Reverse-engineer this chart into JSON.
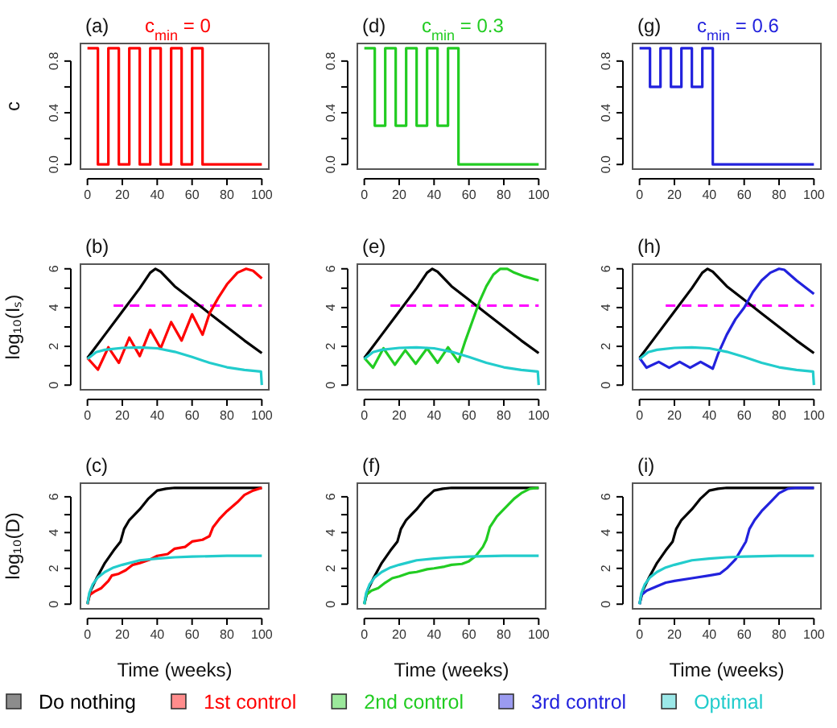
{
  "chart_data": [
    {
      "type": "step",
      "title": "(a)",
      "subtitle": "c$_{min}$ = 0",
      "ylabel": "c",
      "xlim": [
        -4,
        104
      ],
      "xticks": [
        0,
        20,
        40,
        60,
        80,
        100
      ],
      "ylim": [
        -0.036,
        0.936
      ],
      "yticks": [
        {
          "value": 0,
          "label": "0.0"
        },
        {
          "value": 0.2,
          "label": null
        },
        {
          "value": 0.4,
          "label": "0.4"
        },
        {
          "value": 0.6,
          "label": null
        },
        {
          "value": 0.8,
          "label": "0.8"
        }
      ],
      "grid": false,
      "legend": false,
      "series": [
        {
          "color": "#ff0000",
          "x": [
            0,
            6,
            12,
            18,
            24,
            30,
            36,
            42,
            48,
            54,
            60,
            66,
            100
          ],
          "values": [
            0.9,
            0,
            0.9,
            0,
            0.9,
            0,
            0.9,
            0,
            0.9,
            0,
            0.9,
            0,
            0
          ]
        }
      ]
    },
    {
      "type": "step",
      "title": "(d)",
      "subtitle": "c$_{min}$ = 0.3",
      "xlim": [
        -4,
        104
      ],
      "xticks": [
        0,
        20,
        40,
        60,
        80,
        100
      ],
      "ylim": [
        -0.036,
        0.936
      ],
      "yticks": [
        {
          "value": 0,
          "label": "0.0"
        },
        {
          "value": 0.2,
          "label": null
        },
        {
          "value": 0.4,
          "label": "0.4"
        },
        {
          "value": 0.6,
          "label": null
        },
        {
          "value": 0.8,
          "label": "0.8"
        }
      ],
      "grid": false,
      "legend": false,
      "series": [
        {
          "color": "#22cc22",
          "x": [
            0,
            6,
            12,
            18,
            24,
            30,
            36,
            42,
            48,
            54,
            100
          ],
          "values": [
            0.9,
            0.3,
            0.9,
            0.3,
            0.9,
            0.3,
            0.9,
            0.3,
            0.9,
            0,
            0
          ]
        }
      ]
    },
    {
      "type": "step",
      "title": "(g)",
      "subtitle": "c$_{min}$ = 0.6",
      "xlim": [
        -4,
        104
      ],
      "xticks": [
        0,
        20,
        40,
        60,
        80,
        100
      ],
      "ylim": [
        -0.036,
        0.936
      ],
      "yticks": [
        {
          "value": 0,
          "label": "0.0"
        },
        {
          "value": 0.2,
          "label": null
        },
        {
          "value": 0.4,
          "label": "0.4"
        },
        {
          "value": 0.6,
          "label": null
        },
        {
          "value": 0.8,
          "label": "0.8"
        }
      ],
      "grid": false,
      "legend": false,
      "series": [
        {
          "color": "#2222dd",
          "x": [
            0,
            6,
            12,
            18,
            24,
            30,
            36,
            42,
            100
          ],
          "values": [
            0.9,
            0.6,
            0.9,
            0.6,
            0.9,
            0.6,
            0.9,
            0,
            0
          ]
        }
      ]
    },
    {
      "type": "line",
      "title": "(b)",
      "ylabel": "log₁₀(Iₛ)",
      "xlim": [
        -4,
        104
      ],
      "xticks": [
        0,
        20,
        40,
        60,
        80,
        100
      ],
      "ylim": [
        -0.24,
        6.24
      ],
      "yticks": [
        0,
        {
          "value": 1,
          "label": null
        },
        2,
        {
          "value": 3,
          "label": null
        },
        4,
        {
          "value": 5,
          "label": null
        },
        6
      ],
      "grid": false,
      "legend": "bottom",
      "ref_lines": [
        {
          "axis": "y",
          "value": 4.1,
          "color": "#ff00ff",
          "line_style": "dashed"
        }
      ],
      "series": [
        {
          "name": "Do nothing",
          "color": "#000000",
          "x": [
            0,
            10,
            20,
            30,
            36,
            39,
            42,
            50,
            60,
            70,
            80,
            90,
            100
          ],
          "values": [
            1.4,
            2.6,
            3.8,
            5,
            5.8,
            6,
            5.85,
            5.1,
            4.4,
            3.7,
            3.0,
            2.3,
            1.65
          ]
        },
        {
          "name": "1st control",
          "color": "#ff0000",
          "x": [
            0,
            6,
            12,
            18,
            24,
            30,
            36,
            42,
            48,
            54,
            60,
            66,
            70,
            75,
            80,
            86,
            91,
            95,
            100
          ],
          "values": [
            1.4,
            0.8,
            1.95,
            1.15,
            2.45,
            1.5,
            2.85,
            1.9,
            3.25,
            2.3,
            3.65,
            2.6,
            3.7,
            4.5,
            5.2,
            5.8,
            6,
            5.9,
            5.5
          ]
        },
        {
          "name": "Optimal",
          "color": "#22cccc",
          "x": [
            0,
            5,
            10,
            20,
            30,
            40,
            50,
            60,
            70,
            80,
            90,
            99.5,
            100
          ],
          "values": [
            1.35,
            1.7,
            1.82,
            1.92,
            1.95,
            1.9,
            1.72,
            1.45,
            1.15,
            0.92,
            0.78,
            0.7,
            0
          ]
        }
      ]
    },
    {
      "type": "line",
      "title": "(e)",
      "xlim": [
        -4,
        104
      ],
      "xticks": [
        0,
        20,
        40,
        60,
        80,
        100
      ],
      "ylim": [
        -0.24,
        6.24
      ],
      "yticks": [
        0,
        {
          "value": 1,
          "label": null
        },
        2,
        {
          "value": 3,
          "label": null
        },
        4,
        {
          "value": 5,
          "label": null
        },
        6
      ],
      "grid": false,
      "legend": "bottom",
      "ref_lines": [
        {
          "axis": "y",
          "value": 4.1,
          "color": "#ff00ff",
          "line_style": "dashed"
        }
      ],
      "series": [
        {
          "color": "#000000",
          "x": [
            0,
            10,
            20,
            30,
            36,
            39,
            42,
            50,
            60,
            70,
            80,
            90,
            100
          ],
          "values": [
            1.4,
            2.6,
            3.8,
            5,
            5.8,
            6,
            5.85,
            5.1,
            4.4,
            3.7,
            3.0,
            2.3,
            1.65
          ]
        },
        {
          "name": "2nd control",
          "color": "#22cc22",
          "x": [
            0,
            5,
            11,
            17.5,
            23.5,
            29.5,
            36,
            42,
            48,
            54,
            58,
            62,
            66,
            70,
            74,
            78,
            82,
            86,
            92,
            100
          ],
          "values": [
            1.4,
            0.9,
            1.9,
            1.05,
            1.8,
            1.1,
            1.9,
            1.15,
            1.95,
            1.2,
            2.3,
            3.3,
            4.3,
            5.1,
            5.7,
            6,
            6,
            5.8,
            5.6,
            5.4
          ]
        },
        {
          "color": "#22cccc",
          "x": [
            0,
            5,
            10,
            20,
            30,
            40,
            50,
            60,
            70,
            80,
            90,
            99.5,
            100
          ],
          "values": [
            1.35,
            1.7,
            1.82,
            1.92,
            1.95,
            1.9,
            1.72,
            1.45,
            1.15,
            0.92,
            0.78,
            0.7,
            0
          ]
        }
      ]
    },
    {
      "type": "line",
      "title": "(h)",
      "xlim": [
        -4,
        104
      ],
      "xticks": [
        0,
        20,
        40,
        60,
        80,
        100
      ],
      "ylim": [
        -0.24,
        6.24
      ],
      "yticks": [
        0,
        {
          "value": 1,
          "label": null
        },
        2,
        {
          "value": 3,
          "label": null
        },
        4,
        {
          "value": 5,
          "label": null
        },
        6
      ],
      "grid": false,
      "legend": "bottom",
      "ref_lines": [
        {
          "axis": "y",
          "value": 4.1,
          "color": "#ff00ff",
          "line_style": "dashed"
        }
      ],
      "series": [
        {
          "color": "#000000",
          "x": [
            0,
            10,
            20,
            30,
            36,
            39,
            42,
            50,
            60,
            70,
            80,
            90,
            100
          ],
          "values": [
            1.4,
            2.6,
            3.8,
            5,
            5.8,
            6,
            5.85,
            5.1,
            4.4,
            3.7,
            3.0,
            2.3,
            1.65
          ]
        },
        {
          "name": "3rd control",
          "color": "#2222dd",
          "x": [
            0,
            4,
            11,
            17,
            23,
            29,
            35,
            42,
            45,
            50,
            55,
            60,
            65,
            70,
            75,
            80,
            83,
            90,
            100
          ],
          "values": [
            1.4,
            0.9,
            1.2,
            0.9,
            1.2,
            0.9,
            1.2,
            0.85,
            1.6,
            2.6,
            3.4,
            4.0,
            4.8,
            5.4,
            5.8,
            6,
            5.95,
            5.4,
            4.7
          ]
        },
        {
          "color": "#22cccc",
          "x": [
            0,
            5,
            10,
            20,
            30,
            40,
            50,
            60,
            70,
            80,
            90,
            99.5,
            100
          ],
          "values": [
            1.35,
            1.7,
            1.82,
            1.92,
            1.95,
            1.9,
            1.72,
            1.45,
            1.15,
            0.92,
            0.78,
            0.7,
            0
          ]
        }
      ]
    },
    {
      "type": "line",
      "title": "(c)",
      "ylabel": "log₁₀(D)",
      "xlabel": "Time (weeks)",
      "xlim": [
        -4,
        104
      ],
      "xticks": [
        0,
        20,
        40,
        60,
        80,
        100
      ],
      "ylim": [
        -0.26,
        6.76
      ],
      "yticks": [
        0,
        {
          "value": 1,
          "label": null
        },
        2,
        {
          "value": 3,
          "label": null
        },
        4,
        {
          "value": 5,
          "label": null
        },
        6
      ],
      "grid": false,
      "series": [
        {
          "color": "#000000",
          "x": [
            0,
            2,
            5,
            10,
            15,
            19,
            21,
            24,
            30,
            35,
            40,
            45,
            50,
            100
          ],
          "values": [
            0,
            0.8,
            1.4,
            2.3,
            3.0,
            3.5,
            4.2,
            4.7,
            5.3,
            5.9,
            6.35,
            6.45,
            6.5,
            6.5
          ]
        },
        {
          "color": "#ff0000",
          "x": [
            0,
            1,
            4,
            8,
            12,
            14,
            18,
            22,
            26,
            30,
            36,
            40,
            46,
            50,
            56,
            60,
            66,
            70,
            72,
            76,
            80,
            86,
            90,
            95,
            100
          ],
          "values": [
            0,
            0.5,
            0.7,
            0.9,
            1.3,
            1.6,
            1.7,
            1.9,
            2.2,
            2.3,
            2.5,
            2.7,
            2.8,
            3.1,
            3.2,
            3.5,
            3.6,
            3.8,
            4.3,
            4.8,
            5.2,
            5.7,
            6.1,
            6.35,
            6.5
          ]
        },
        {
          "color": "#22cccc",
          "x": [
            0,
            1,
            3,
            6,
            10,
            15,
            20,
            30,
            40,
            50,
            60,
            80,
            100
          ],
          "values": [
            0,
            0.6,
            1.1,
            1.5,
            1.8,
            2.05,
            2.2,
            2.45,
            2.55,
            2.62,
            2.66,
            2.7,
            2.7
          ]
        }
      ]
    },
    {
      "type": "line",
      "title": "(f)",
      "xlabel": "Time (weeks)",
      "xlim": [
        -4,
        104
      ],
      "xticks": [
        0,
        20,
        40,
        60,
        80,
        100
      ],
      "ylim": [
        -0.26,
        6.76
      ],
      "yticks": [
        0,
        {
          "value": 1,
          "label": null
        },
        2,
        {
          "value": 3,
          "label": null
        },
        4,
        {
          "value": 5,
          "label": null
        },
        6
      ],
      "grid": false,
      "series": [
        {
          "color": "#000000",
          "x": [
            0,
            2,
            5,
            10,
            15,
            19,
            21,
            24,
            30,
            35,
            40,
            45,
            50,
            100
          ],
          "values": [
            0,
            0.8,
            1.4,
            2.3,
            3.0,
            3.5,
            4.2,
            4.7,
            5.3,
            5.9,
            6.35,
            6.45,
            6.5,
            6.5
          ]
        },
        {
          "color": "#22cc22",
          "x": [
            0,
            1,
            4,
            8,
            12,
            16,
            20,
            26,
            30,
            36,
            40,
            46,
            50,
            56,
            60,
            64,
            68,
            70,
            72,
            76,
            80,
            86,
            90,
            95,
            100
          ],
          "values": [
            0,
            0.5,
            0.75,
            0.9,
            1.2,
            1.45,
            1.55,
            1.75,
            1.8,
            1.95,
            2.0,
            2.1,
            2.2,
            2.25,
            2.4,
            2.7,
            3.2,
            3.6,
            4.3,
            4.9,
            5.3,
            5.9,
            6.2,
            6.45,
            6.5
          ]
        },
        {
          "color": "#22cccc",
          "x": [
            0,
            1,
            3,
            6,
            10,
            15,
            20,
            30,
            40,
            50,
            60,
            80,
            100
          ],
          "values": [
            0,
            0.6,
            1.1,
            1.5,
            1.8,
            2.05,
            2.2,
            2.45,
            2.55,
            2.62,
            2.66,
            2.7,
            2.7
          ]
        }
      ]
    },
    {
      "type": "line",
      "title": "(i)",
      "xlabel": "Time (weeks)",
      "xlim": [
        -4,
        104
      ],
      "xticks": [
        0,
        20,
        40,
        60,
        80,
        100
      ],
      "ylim": [
        -0.26,
        6.76
      ],
      "yticks": [
        0,
        {
          "value": 1,
          "label": null
        },
        2,
        {
          "value": 3,
          "label": null
        },
        4,
        {
          "value": 5,
          "label": null
        },
        6
      ],
      "grid": false,
      "series": [
        {
          "color": "#000000",
          "x": [
            0,
            2,
            5,
            10,
            15,
            19,
            21,
            24,
            30,
            35,
            40,
            45,
            50,
            100
          ],
          "values": [
            0,
            0.8,
            1.4,
            2.3,
            3.0,
            3.5,
            4.2,
            4.7,
            5.3,
            5.9,
            6.35,
            6.45,
            6.5,
            6.5
          ]
        },
        {
          "color": "#2222dd",
          "x": [
            0,
            1,
            4,
            10,
            15,
            20,
            30,
            40,
            46,
            50,
            55,
            58,
            61,
            63,
            66,
            70,
            75,
            80,
            85,
            90,
            100
          ],
          "values": [
            0,
            0.5,
            0.75,
            1.0,
            1.2,
            1.3,
            1.45,
            1.6,
            1.7,
            2.0,
            2.5,
            3.0,
            3.5,
            4.2,
            4.7,
            5.2,
            5.7,
            6.2,
            6.45,
            6.5,
            6.5
          ]
        },
        {
          "color": "#22cccc",
          "x": [
            0,
            1,
            3,
            6,
            10,
            15,
            20,
            30,
            40,
            50,
            60,
            80,
            100
          ],
          "values": [
            0,
            0.6,
            1.1,
            1.5,
            1.8,
            2.05,
            2.2,
            2.45,
            2.55,
            2.62,
            2.66,
            2.7,
            2.7
          ]
        }
      ]
    }
  ]
}
